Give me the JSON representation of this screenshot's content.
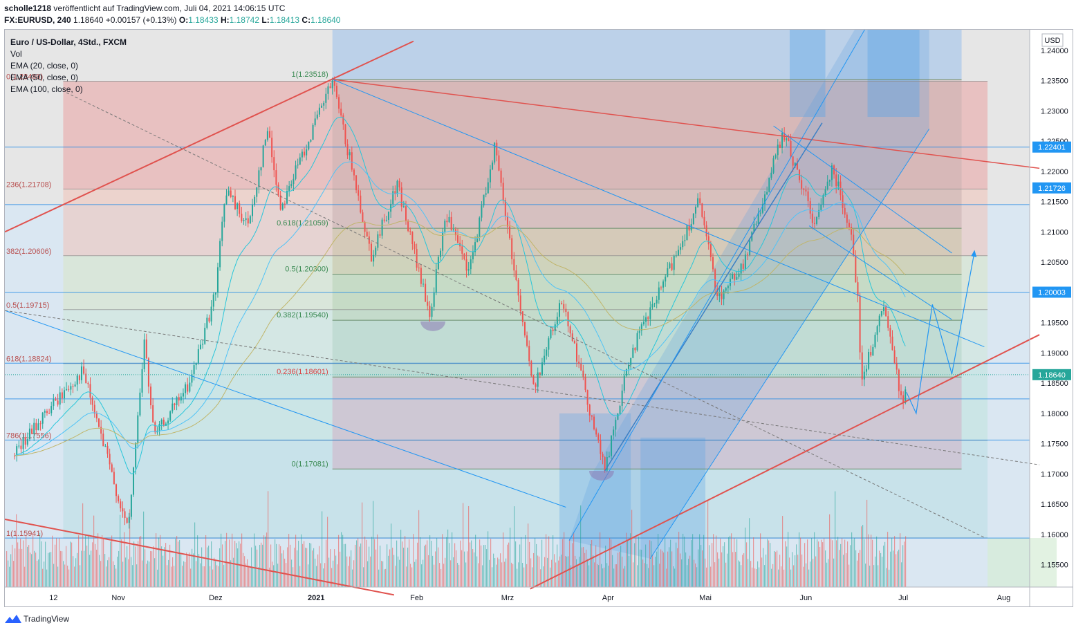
{
  "header": {
    "publisher": "scholle1218",
    "published_text": "veröffentlicht auf TradingView.com, Juli 04, 2021 14:06:15 UTC",
    "symbol": "FX:EURUSD, 240",
    "last": "1.18640",
    "change": "+0.00157 (+0.13%)",
    "open_label": "O:",
    "open": "1.18433",
    "high_label": "H:",
    "high": "1.18742",
    "low_label": "L:",
    "low": "1.18413",
    "close_label": "C:",
    "close": "1.18640"
  },
  "legend": {
    "title": "Euro / US-Dollar, 4Std., FXCM",
    "items": [
      "Vol",
      "EMA (20, close, 0)",
      "EMA (50, close, 0)",
      "EMA (100, close, 0)"
    ]
  },
  "footer": {
    "brand": "TradingView"
  },
  "colors": {
    "up": "#26a69a",
    "down": "#ef5350",
    "ema20": "#26c6da",
    "ema50": "#4fc3f7",
    "ema100": "#c0b56a",
    "trend_red": "#e0524e",
    "channel_blue": "#2196f3",
    "level_blue": "#1e88e5"
  },
  "chart_data": {
    "type": "candlestick",
    "symbol": "EURUSD",
    "currency": "USD",
    "ylim": [
      1.1513,
      1.2434
    ],
    "y_ticks": [
      1.24,
      1.235,
      1.23,
      1.225,
      1.22,
      1.215,
      1.21,
      1.205,
      1.2,
      1.195,
      1.19,
      1.185,
      1.18,
      1.175,
      1.17,
      1.165,
      1.16,
      1.155
    ],
    "y_tick_labels": [
      "1.24000",
      "1.23500",
      "1.23000",
      "1.22500",
      "1.22000",
      "1.21500",
      "1.21000",
      "1.20500",
      "1.20000",
      "1.19500",
      "1.19000",
      "1.18500",
      "1.18000",
      "1.17500",
      "1.17000",
      "1.16500",
      "1.16000",
      "1.15500"
    ],
    "x_ticks": [
      {
        "label": "12",
        "date": "2020-10-12",
        "bold": false
      },
      {
        "label": "Nov",
        "date": "2020-11-01",
        "bold": false
      },
      {
        "label": "Dez",
        "date": "2020-12-01",
        "bold": false
      },
      {
        "label": "2021",
        "date": "2021-01-01",
        "bold": true
      },
      {
        "label": "Feb",
        "date": "2021-02-01",
        "bold": false
      },
      {
        "label": "Mrz",
        "date": "2021-03-01",
        "bold": false
      },
      {
        "label": "Apr",
        "date": "2021-04-01",
        "bold": false
      },
      {
        "label": "Mai",
        "date": "2021-05-01",
        "bold": false
      },
      {
        "label": "Jun",
        "date": "2021-06-01",
        "bold": false
      },
      {
        "label": "Jul",
        "date": "2021-07-01",
        "bold": false
      },
      {
        "label": "Aug",
        "date": "2021-08-01",
        "bold": false
      }
    ],
    "price_anchors": [
      {
        "date": "2020-09-30",
        "price": 1.173
      },
      {
        "date": "2020-10-08",
        "price": 1.179
      },
      {
        "date": "2020-10-21",
        "price": 1.187
      },
      {
        "date": "2020-11-04",
        "price": 1.1603
      },
      {
        "date": "2020-11-09",
        "price": 1.192
      },
      {
        "date": "2020-11-12",
        "price": 1.176
      },
      {
        "date": "2020-11-23",
        "price": 1.185
      },
      {
        "date": "2020-12-01",
        "price": 1.2
      },
      {
        "date": "2020-12-04",
        "price": 1.217
      },
      {
        "date": "2020-12-11",
        "price": 1.211
      },
      {
        "date": "2020-12-17",
        "price": 1.227
      },
      {
        "date": "2020-12-21",
        "price": 1.214
      },
      {
        "date": "2021-01-06",
        "price": 1.2349
      },
      {
        "date": "2021-01-18",
        "price": 1.206
      },
      {
        "date": "2021-01-26",
        "price": 1.218
      },
      {
        "date": "2021-02-05",
        "price": 1.196
      },
      {
        "date": "2021-02-10",
        "price": 1.213
      },
      {
        "date": "2021-02-17",
        "price": 1.203
      },
      {
        "date": "2021-02-25",
        "price": 1.2242
      },
      {
        "date": "2021-03-09",
        "price": 1.184
      },
      {
        "date": "2021-03-18",
        "price": 1.199
      },
      {
        "date": "2021-03-31",
        "price": 1.1705
      },
      {
        "date": "2021-04-08",
        "price": 1.19
      },
      {
        "date": "2021-04-16",
        "price": 1.199
      },
      {
        "date": "2021-04-29",
        "price": 1.215
      },
      {
        "date": "2021-05-05",
        "price": 1.199
      },
      {
        "date": "2021-05-13",
        "price": 1.205
      },
      {
        "date": "2021-05-25",
        "price": 1.2265
      },
      {
        "date": "2021-06-04",
        "price": 1.211
      },
      {
        "date": "2021-06-09",
        "price": 1.221
      },
      {
        "date": "2021-06-15",
        "price": 1.21
      },
      {
        "date": "2021-06-17",
        "price": 1.199
      },
      {
        "date": "2021-06-18",
        "price": 1.185
      },
      {
        "date": "2021-06-25",
        "price": 1.1975
      },
      {
        "date": "2021-07-01",
        "price": 1.181
      },
      {
        "date": "2021-07-02",
        "price": 1.1864
      }
    ],
    "current_price": 1.1864,
    "price_tags": [
      {
        "label": "1.22401",
        "price": 1.22401
      },
      {
        "label": "1.21726",
        "price": 1.21726
      },
      {
        "label": "1.20003",
        "price": 1.20003
      },
      {
        "label": "1.18640",
        "price": 1.1864
      }
    ],
    "fib_major": {
      "date_start": "2021-01-06",
      "date_end": "2021-07-19",
      "levels": [
        {
          "label": "1(1.23518)",
          "price": 1.23518
        },
        {
          "label": "0.618(1.21059)",
          "price": 1.21059
        },
        {
          "label": "0.5(1.20300)",
          "price": 1.203
        },
        {
          "label": "0.382(1.19540)",
          "price": 1.1954
        },
        {
          "label": "0.236(1.18601)",
          "price": 1.18601
        },
        {
          "label": "0(1.17081)",
          "price": 1.17081
        }
      ]
    },
    "fib_outer": {
      "date_start": "2020-10-15",
      "date_end": "2021-07-27",
      "levels": [
        {
          "label": "0(1.23489)",
          "price": 1.23489
        },
        {
          "label": "236(1.21708)",
          "price": 1.21708
        },
        {
          "label": "382(1.20606)",
          "price": 1.20606
        },
        {
          "label": "0.5(1.19715)",
          "price": 1.19715
        },
        {
          "label": "618(1.18824)",
          "price": 1.18824
        },
        {
          "label": "786(1.17556)",
          "price": 1.17556
        },
        {
          "label": "1(1.15941)",
          "price": 1.15941
        }
      ]
    },
    "horizontal_levels": [
      1.224,
      1.2145,
      1.2,
      1.1883,
      1.1824,
      1.1756,
      1.1594
    ]
  }
}
